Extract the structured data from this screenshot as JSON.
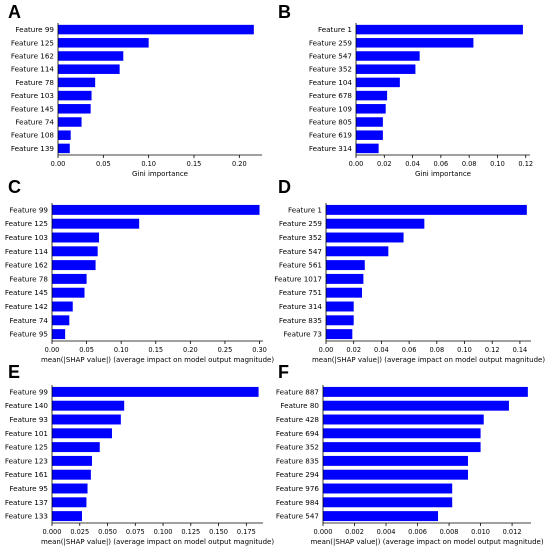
{
  "figure": {
    "bar_color": "#0000ff",
    "axis_color": "#000000"
  },
  "chart_data": [
    {
      "panel_label": "A",
      "type": "bar",
      "orientation": "horizontal",
      "categories": [
        "Feature 99",
        "Feature 125",
        "Feature 162",
        "Feature 114",
        "Feature 78",
        "Feature 103",
        "Feature 145",
        "Feature 74",
        "Feature 108",
        "Feature 139"
      ],
      "values": [
        0.216,
        0.1,
        0.072,
        0.068,
        0.041,
        0.037,
        0.036,
        0.026,
        0.014,
        0.013
      ],
      "xlabel": "Gini importance",
      "xlim": [
        0,
        0.225
      ],
      "xticks": [
        0.0,
        0.05,
        0.1,
        0.15,
        0.2
      ],
      "xtick_labels": [
        "0.00",
        "0.05",
        "0.10",
        "0.15",
        "0.20"
      ]
    },
    {
      "panel_label": "B",
      "type": "bar",
      "orientation": "horizontal",
      "categories": [
        "Feature 1",
        "Feature 259",
        "Feature 547",
        "Feature 352",
        "Feature 104",
        "Feature 678",
        "Feature 109",
        "Feature 805",
        "Feature 619",
        "Feature 314"
      ],
      "values": [
        0.118,
        0.083,
        0.045,
        0.042,
        0.031,
        0.022,
        0.021,
        0.019,
        0.019,
        0.016
      ],
      "xlabel": "Gini importance",
      "xlim": [
        0,
        0.123
      ],
      "xticks": [
        0.0,
        0.02,
        0.04,
        0.06,
        0.08,
        0.1,
        0.12
      ],
      "xtick_labels": [
        "0.00",
        "0.02",
        "0.04",
        "0.06",
        "0.08",
        "0.10",
        "0.12"
      ]
    },
    {
      "panel_label": "C",
      "type": "bar",
      "orientation": "horizontal",
      "categories": [
        "Feature 99",
        "Feature 125",
        "Feature 103",
        "Feature 114",
        "Feature 162",
        "Feature 78",
        "Feature 145",
        "Feature 142",
        "Feature 74",
        "Feature 95"
      ],
      "values": [
        0.3,
        0.126,
        0.068,
        0.066,
        0.063,
        0.05,
        0.047,
        0.03,
        0.025,
        0.019
      ],
      "xlabel": "mean(|SHAP value|) (average impact on model output magnitude)",
      "xlim": [
        0,
        0.305
      ],
      "xticks": [
        0.0,
        0.05,
        0.1,
        0.15,
        0.2,
        0.25,
        0.3
      ],
      "xtick_labels": [
        "0.00",
        "0.05",
        "0.10",
        "0.15",
        "0.20",
        "0.25",
        "0.30"
      ]
    },
    {
      "panel_label": "D",
      "type": "bar",
      "orientation": "horizontal",
      "categories": [
        "Feature 1",
        "Feature 259",
        "Feature 352",
        "Feature 547",
        "Feature 561",
        "Feature 1017",
        "Feature 751",
        "Feature 314",
        "Feature 835",
        "Feature 73"
      ],
      "values": [
        0.145,
        0.071,
        0.056,
        0.045,
        0.028,
        0.027,
        0.026,
        0.02,
        0.02,
        0.019
      ],
      "xlabel": "mean(|SHAP value|) (average impact on model output magnitude)",
      "xlim": [
        0,
        0.148
      ],
      "xticks": [
        0.0,
        0.02,
        0.04,
        0.06,
        0.08,
        0.1,
        0.12,
        0.14
      ],
      "xtick_labels": [
        "0.00",
        "0.02",
        "0.04",
        "0.06",
        "0.08",
        "0.10",
        "0.12",
        "0.14"
      ]
    },
    {
      "panel_label": "E",
      "type": "bar",
      "orientation": "horizontal",
      "categories": [
        "Feature 99",
        "Feature 140",
        "Feature 93",
        "Feature 101",
        "Feature 125",
        "Feature 123",
        "Feature 161",
        "Feature 95",
        "Feature 137",
        "Feature 133"
      ],
      "values": [
        0.186,
        0.065,
        0.062,
        0.054,
        0.043,
        0.036,
        0.035,
        0.032,
        0.031,
        0.027
      ],
      "xlabel": "mean(|SHAP value|) (average impact on model output magnitude)",
      "xlim": [
        0,
        0.19
      ],
      "xticks": [
        0.0,
        0.025,
        0.05,
        0.075,
        0.1,
        0.125,
        0.15,
        0.175
      ],
      "xtick_labels": [
        "0.000",
        "0.025",
        "0.050",
        "0.075",
        "0.100",
        "0.125",
        "0.150",
        "0.175"
      ]
    },
    {
      "panel_label": "F",
      "type": "bar",
      "orientation": "horizontal",
      "categories": [
        "Feature 887",
        "Feature 80",
        "Feature 428",
        "Feature 694",
        "Feature 352",
        "Feature 835",
        "Feature 294",
        "Feature 976",
        "Feature 984",
        "Feature 547"
      ],
      "values": [
        0.013,
        0.0118,
        0.0102,
        0.01,
        0.01,
        0.0092,
        0.0092,
        0.0082,
        0.0082,
        0.0073
      ],
      "xlabel": "mean(|SHAP value|) (average impact on model output magnitude)",
      "xlim": [
        0,
        0.0132
      ],
      "xticks": [
        0.0,
        0.002,
        0.004,
        0.006,
        0.008,
        0.01,
        0.012
      ],
      "xtick_labels": [
        "0.000",
        "0.002",
        "0.004",
        "0.006",
        "0.008",
        "0.010",
        "0.012"
      ]
    }
  ]
}
